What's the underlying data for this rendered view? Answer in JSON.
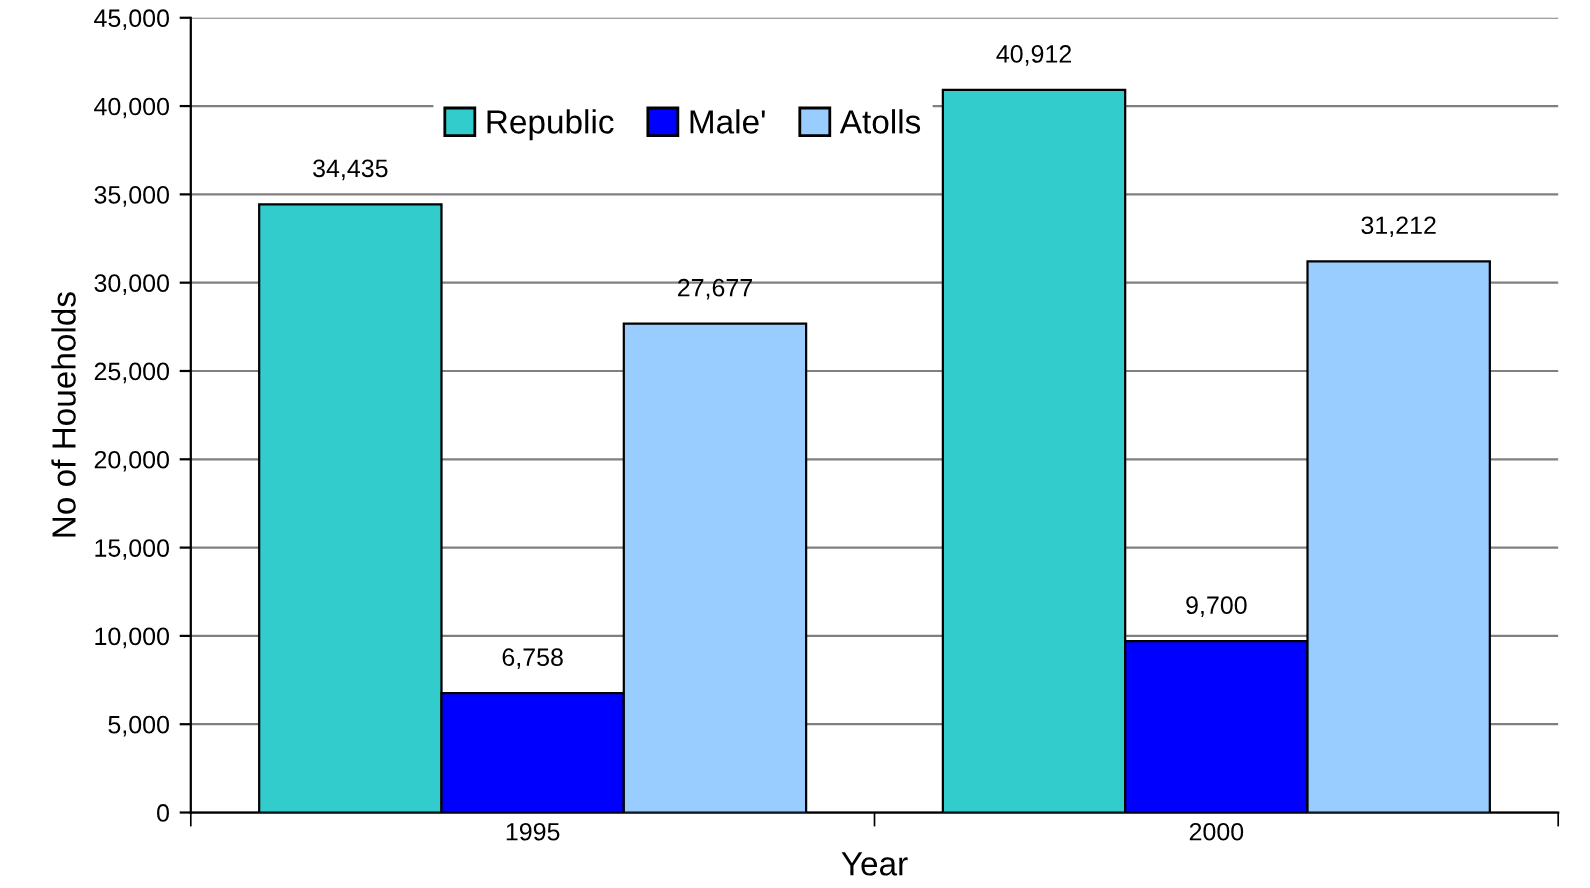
{
  "chart_data": {
    "type": "bar",
    "xlabel": "Year",
    "ylabel": "No of Houeholds",
    "categories": [
      "1995",
      "2000"
    ],
    "series": [
      {
        "name": "Republic",
        "color": "#33cccc",
        "values": [
          34435,
          40912
        ],
        "value_labels": [
          "34,435",
          "40,912"
        ]
      },
      {
        "name": "Male'",
        "color": "#0000ff",
        "values": [
          6758,
          9700
        ],
        "value_labels": [
          "6,758",
          "9,700"
        ]
      },
      {
        "name": "Atolls",
        "color": "#99ccff",
        "values": [
          27677,
          31212
        ],
        "value_labels": [
          "27,677",
          "31,212"
        ]
      }
    ],
    "ylim": [
      0,
      45000
    ],
    "yticks": [
      {
        "value": 0,
        "label": "0"
      },
      {
        "value": 5000,
        "label": "5,000"
      },
      {
        "value": 10000,
        "label": "10,000"
      },
      {
        "value": 15000,
        "label": "15,000"
      },
      {
        "value": 20000,
        "label": "20,000"
      },
      {
        "value": 25000,
        "label": "25,000"
      },
      {
        "value": 30000,
        "label": "30,000"
      },
      {
        "value": 35000,
        "label": "35,000"
      },
      {
        "value": 40000,
        "label": "40,000"
      },
      {
        "value": 45000,
        "label": "45,000"
      }
    ],
    "grid": "y",
    "legend": "top"
  }
}
